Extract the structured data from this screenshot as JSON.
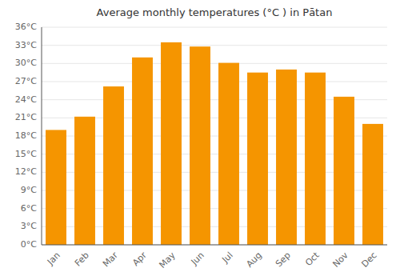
{
  "chart_data": {
    "type": "bar",
    "title": "Average monthly temperatures (°C ) in Pātan",
    "categories": [
      "Jan",
      "Feb",
      "Mar",
      "Apr",
      "May",
      "Jun",
      "Jul",
      "Aug",
      "Sep",
      "Oct",
      "Nov",
      "Dec"
    ],
    "values": [
      19.0,
      21.2,
      26.2,
      31.0,
      33.5,
      32.8,
      30.1,
      28.5,
      29.0,
      28.5,
      24.5,
      20.0
    ],
    "color": "#F59500",
    "ylim": [
      0,
      36
    ],
    "yticks": [
      {
        "value": 0,
        "label": "0°C"
      },
      {
        "value": 3,
        "label": "3°C"
      },
      {
        "value": 6,
        "label": "6°C"
      },
      {
        "value": 9,
        "label": "9°C"
      },
      {
        "value": 12,
        "label": "12°C"
      },
      {
        "value": 15,
        "label": "15°C"
      },
      {
        "value": 18,
        "label": "18°C"
      },
      {
        "value": 21,
        "label": "21°C"
      },
      {
        "value": 24,
        "label": "24°C"
      },
      {
        "value": 27,
        "label": "27°C"
      },
      {
        "value": 30,
        "label": "30°C"
      },
      {
        "value": 33,
        "label": "33°C"
      },
      {
        "value": 36,
        "label": "36°C"
      }
    ],
    "grid": true
  }
}
